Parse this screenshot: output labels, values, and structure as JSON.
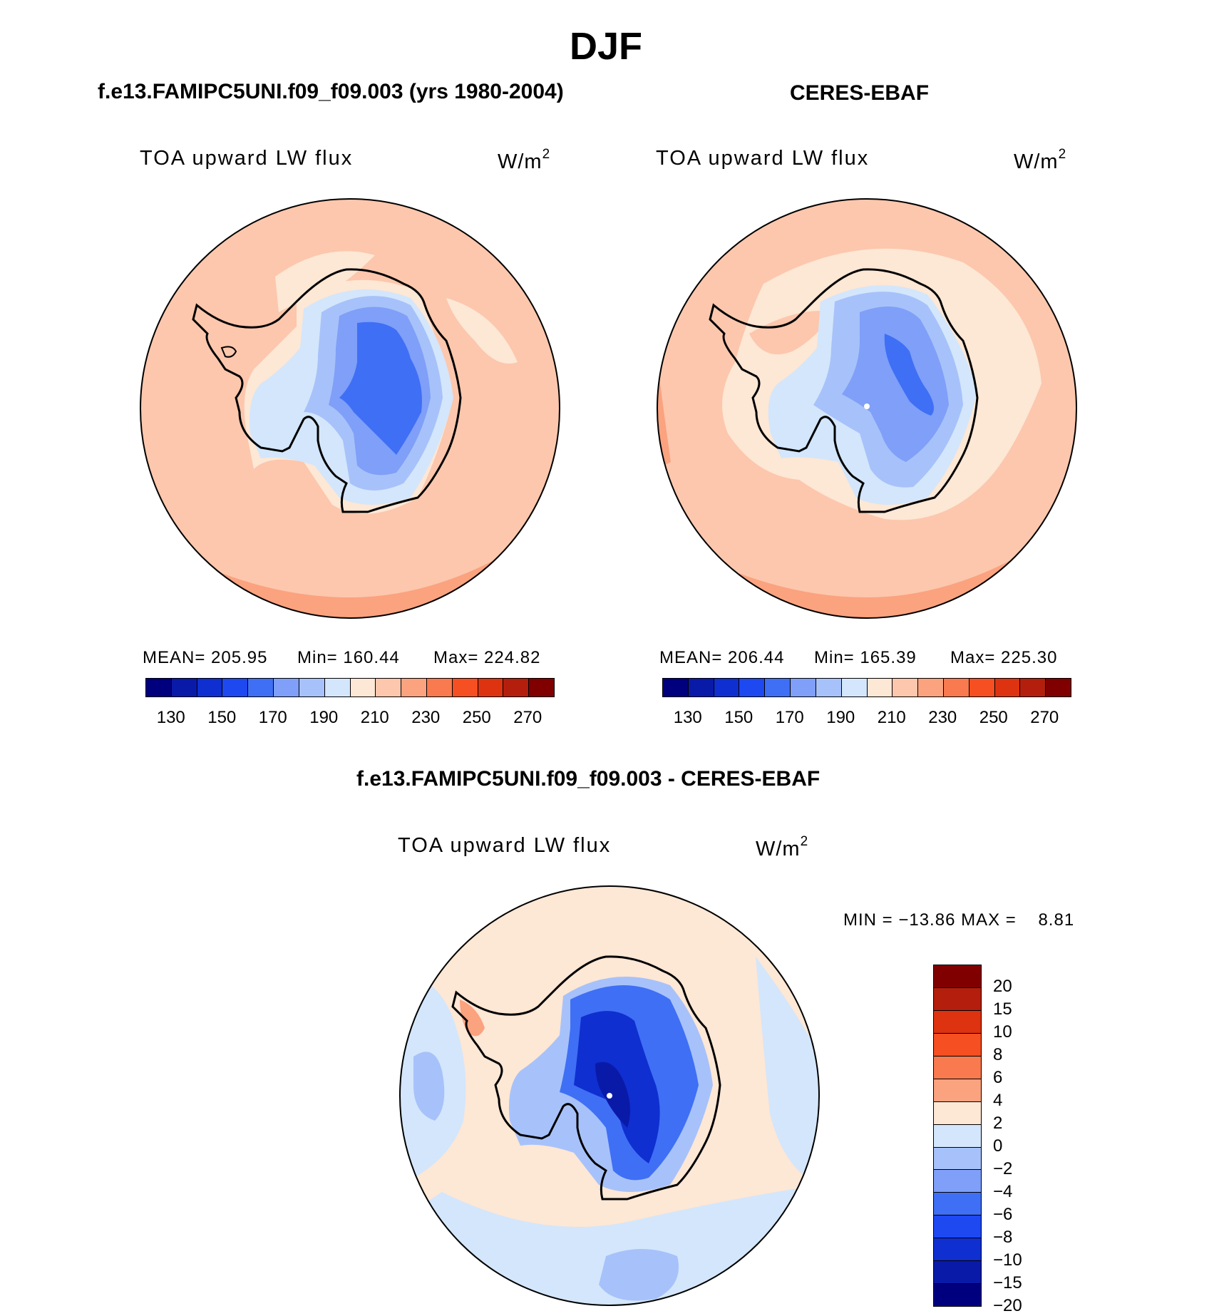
{
  "title": "DJF",
  "panels": {
    "model": {
      "title": "f.e13.FAMIPC5UNI.f09_f09.003 (yrs 1980-2004)",
      "field": "TOA upward LW flux",
      "unit": "W/m",
      "unit_exp": "2",
      "stats": {
        "mean": "MEAN= 205.95",
        "min": "Min= 160.44",
        "max": "Max= 224.82"
      }
    },
    "obs": {
      "title": "CERES-EBAF",
      "field": "TOA upward LW flux",
      "unit": "W/m",
      "unit_exp": "2",
      "stats": {
        "mean": "MEAN= 206.44",
        "min": "Min= 165.39",
        "max": "Max= 225.30"
      }
    },
    "diff": {
      "title": "f.e13.FAMIPC5UNI.f09_f09.003 - CERES-EBAF",
      "field": "TOA upward LW flux",
      "unit": "W/m",
      "unit_exp": "2",
      "minmax": "MIN = −13.86 MAX =    8.81"
    }
  },
  "colorbar_main": {
    "colors": [
      "#00007f",
      "#0a1aa8",
      "#0f2fd0",
      "#1e48f0",
      "#3f6ff5",
      "#7f9ff8",
      "#a7c2fa",
      "#d3e6fb",
      "#fde7d5",
      "#fcc7ad",
      "#fba27f",
      "#f97a4e",
      "#f54f22",
      "#dd3310",
      "#b31f0c",
      "#800000"
    ],
    "tick_labels": [
      "130",
      "150",
      "170",
      "190",
      "210",
      "230",
      "250",
      "270"
    ]
  },
  "colorbar_diff": {
    "colors": [
      "#800000",
      "#b31f0c",
      "#dd3310",
      "#f54f22",
      "#f97a4e",
      "#fba27f",
      "#fde7d5",
      "#d3e6fb",
      "#a7c2fa",
      "#7f9ff8",
      "#3f6ff5",
      "#1e48f0",
      "#0f2fd0",
      "#0a1aa8",
      "#00007f"
    ],
    "tick_labels": [
      "20",
      "15",
      "10",
      "8",
      "6",
      "4",
      "2",
      "0",
      "−2",
      "−4",
      "−6",
      "−8",
      "−10",
      "−15",
      "−20"
    ]
  }
}
